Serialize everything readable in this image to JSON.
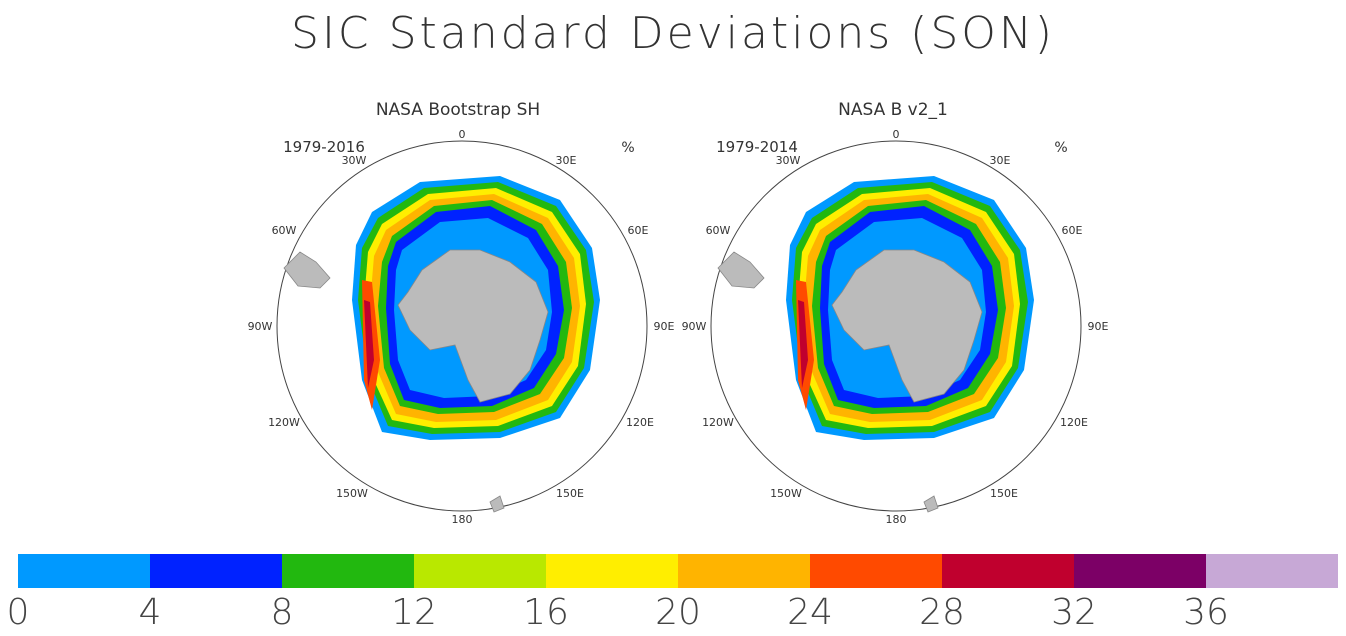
{
  "title": "SIC Standard Deviations (SON)",
  "maps": [
    {
      "title": "NASA Bootstrap SH",
      "period": "1979-2016",
      "unit": "%"
    },
    {
      "title": "NASA B v2_1",
      "period": "1979-2014",
      "unit": "%"
    }
  ],
  "lon_labels": [
    "0",
    "30E",
    "60E",
    "90E",
    "120E",
    "150E",
    "180",
    "150W",
    "120W",
    "90W",
    "60W",
    "30W"
  ],
  "colorbar": {
    "colors": [
      "#0099ff",
      "#0022ff",
      "#22b80f",
      "#b9e800",
      "#ffee00",
      "#ffb400",
      "#ff4a00",
      "#c0002e",
      "#7c0066",
      "#c7a8d6"
    ],
    "labels": [
      "0",
      "4",
      "8",
      "12",
      "16",
      "20",
      "24",
      "28",
      "32",
      "36"
    ]
  }
}
